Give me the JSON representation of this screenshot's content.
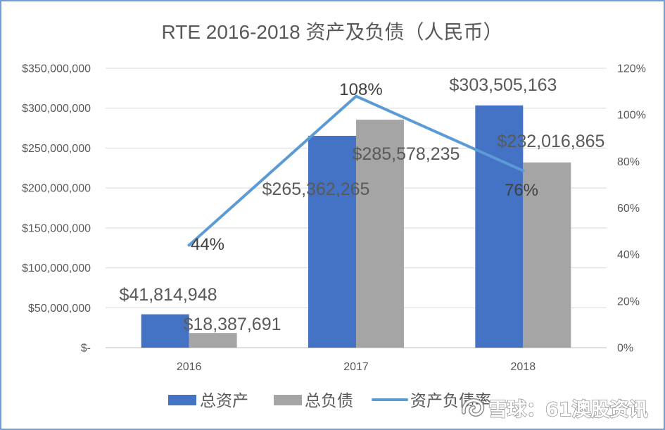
{
  "chart_data": {
    "type": "bar",
    "title": "RTE 2016-2018 资产及负债（人民币）",
    "categories": [
      "2016",
      "2017",
      "2018"
    ],
    "series": [
      {
        "name": "总资产",
        "type": "bar",
        "axis": "left",
        "color": "#4472C4",
        "values": [
          41814948,
          265362265,
          303505163
        ],
        "labels": [
          "$41,814,948",
          "$265,362,265",
          "$303,505,163"
        ]
      },
      {
        "name": "总负债",
        "type": "bar",
        "axis": "left",
        "color": "#A5A5A5",
        "values": [
          18387691,
          285578235,
          232016865
        ],
        "labels": [
          "$18,387,691",
          "$285,578,235",
          "$232,016,865"
        ]
      },
      {
        "name": "资产负债率",
        "type": "line",
        "axis": "right",
        "color": "#5B9BD5",
        "values": [
          44,
          108,
          76
        ],
        "labels": [
          "44%",
          "108%",
          "76%"
        ]
      }
    ],
    "y_left": {
      "min": 0,
      "max": 350000000,
      "tick_labels": [
        "$-",
        "$50,000,000",
        "$100,000,000",
        "$150,000,000",
        "$200,000,000",
        "$250,000,000",
        "$300,000,000",
        "$350,000,000"
      ]
    },
    "y_right": {
      "min": 0,
      "max": 120,
      "tick_labels": [
        "0%",
        "20%",
        "40%",
        "60%",
        "80%",
        "100%",
        "120%"
      ]
    },
    "grid": true,
    "legend": "bottom"
  },
  "watermark": {
    "text": "雪球：61澳股资讯"
  }
}
